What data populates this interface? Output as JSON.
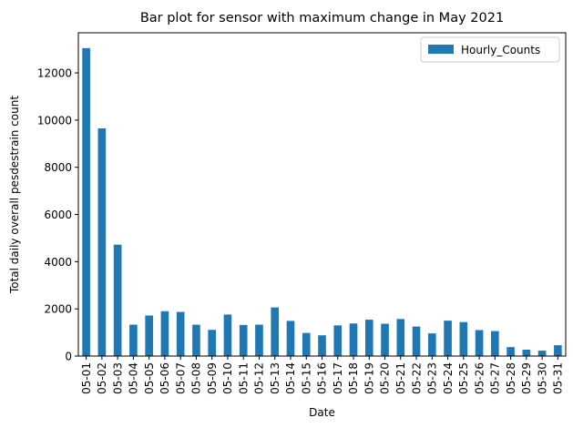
{
  "chart_data": {
    "type": "bar",
    "title": "Bar plot for sensor with maximum change in May 2021",
    "xlabel": "Date",
    "ylabel": "Total daily overall pesdestrain count",
    "categories": [
      "05-01",
      "05-02",
      "05-03",
      "05-04",
      "05-05",
      "05-06",
      "05-07",
      "05-08",
      "05-09",
      "05-10",
      "05-11",
      "05-12",
      "05-13",
      "05-14",
      "05-15",
      "05-16",
      "05-17",
      "05-18",
      "05-19",
      "05-20",
      "05-21",
      "05-22",
      "05-23",
      "05-24",
      "05-25",
      "05-26",
      "05-27",
      "05-28",
      "05-29",
      "05-30",
      "05-31"
    ],
    "series": [
      {
        "name": "Hourly_Counts",
        "color": "#1f77b4",
        "values": [
          13050,
          9650,
          4720,
          1330,
          1720,
          1900,
          1870,
          1330,
          1110,
          1760,
          1320,
          1330,
          2060,
          1490,
          980,
          880,
          1300,
          1380,
          1540,
          1370,
          1570,
          1250,
          960,
          1500,
          1440,
          1100,
          1060,
          380,
          270,
          230,
          460
        ]
      }
    ],
    "ylim": [
      0,
      13700
    ],
    "yticks": [
      0,
      2000,
      4000,
      6000,
      8000,
      10000,
      12000
    ],
    "ytick_labels": [
      "0",
      "2000",
      "4000",
      "6000",
      "8000",
      "10000",
      "12000"
    ],
    "grid": false,
    "legend_position": "top-right"
  }
}
